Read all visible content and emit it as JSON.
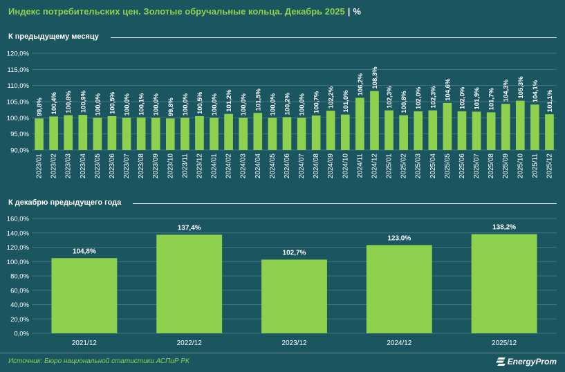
{
  "title": {
    "text": "Индекс потребительских цен. Золотые обручальные кольца. Декабрь 2025",
    "separator": "|",
    "unit": "%"
  },
  "sections": {
    "monthly_label": "К предыдущему месяцу",
    "yearly_label": "К декабрю предыдущего года"
  },
  "footer": {
    "source": "Источник: Бюро национальной статистики АСПиР РК",
    "brand": "EnergyProm"
  },
  "colors": {
    "background": "#1b5560",
    "bar": "#8ed14f",
    "title": "#8ed14f",
    "grid": "#3f7680",
    "text": "#ffffff"
  },
  "chart_data": [
    {
      "type": "bar",
      "title": "К предыдущему месяцу",
      "categories": [
        "2023/01",
        "2023/02",
        "2023/03",
        "2023/04",
        "2023/05",
        "2023/06",
        "2023/07",
        "2023/08",
        "2023/09",
        "2023/10",
        "2023/11",
        "2023/12",
        "2024/01",
        "2024/02",
        "2024/03",
        "2024/04",
        "2024/05",
        "2024/06",
        "2024/07",
        "2024/08",
        "2024/09",
        "2024/10",
        "2024/11",
        "2024/12",
        "2025/01",
        "2025/02",
        "2025/03",
        "2025/04",
        "2025/05",
        "2025/06",
        "2025/07",
        "2025/08",
        "2025/09",
        "2025/10",
        "2025/11",
        "2025/12"
      ],
      "values": [
        99.8,
        100.4,
        100.8,
        100.9,
        100.0,
        100.5,
        100.0,
        100.1,
        100.0,
        99.8,
        100.0,
        100.5,
        100.0,
        101.2,
        100.0,
        101.5,
        100.0,
        100.2,
        100.0,
        100.7,
        102.2,
        101.0,
        106.2,
        108.3,
        102.3,
        100.8,
        102.0,
        102.3,
        104.6,
        102.0,
        101.9,
        101.7,
        104.3,
        105.3,
        104.1,
        101.1
      ],
      "labels": [
        "99,8%",
        "100,4%",
        "100,8%",
        "100,9%",
        "100,0%",
        "100,5%",
        "100,0%",
        "100,1%",
        "100,0%",
        "99,8%",
        "100,0%",
        "100,5%",
        "100,0%",
        "101,2%",
        "100,0%",
        "101,5%",
        "100,0%",
        "100,2%",
        "100,0%",
        "100,7%",
        "102,2%",
        "101,0%",
        "106,2%",
        "108,3%",
        "102,3%",
        "100,8%",
        "102,0%",
        "102,3%",
        "104,6%",
        "102,0%",
        "101,9%",
        "101,7%",
        "104,3%",
        "105,3%",
        "104,1%",
        "101,1%"
      ],
      "ylim": [
        90,
        120
      ],
      "yticks": [
        90,
        95,
        100,
        105,
        110,
        115,
        120
      ],
      "ytick_labels": [
        "90,0%",
        "95,0%",
        "100,0%",
        "105,0%",
        "110,0%",
        "115,0%",
        "120,0%"
      ],
      "xlabel": "",
      "ylabel": "",
      "grid": true
    },
    {
      "type": "bar",
      "title": "К декабрю предыдущего года",
      "categories": [
        "2021/12",
        "2022/12",
        "2023/12",
        "2024/12",
        "2025/12"
      ],
      "values": [
        104.8,
        137.4,
        102.7,
        123.0,
        138.2
      ],
      "labels": [
        "104,8%",
        "137,4%",
        "102,7%",
        "123,0%",
        "138,2%"
      ],
      "ylim": [
        0,
        160
      ],
      "yticks": [
        0,
        20,
        40,
        60,
        80,
        100,
        120,
        140,
        160
      ],
      "ytick_labels": [
        "0,0%",
        "20,0%",
        "40,0%",
        "60,0%",
        "80,0%",
        "100,0%",
        "120,0%",
        "140,0%",
        "160,0%"
      ],
      "xlabel": "",
      "ylabel": "",
      "grid": true
    }
  ]
}
